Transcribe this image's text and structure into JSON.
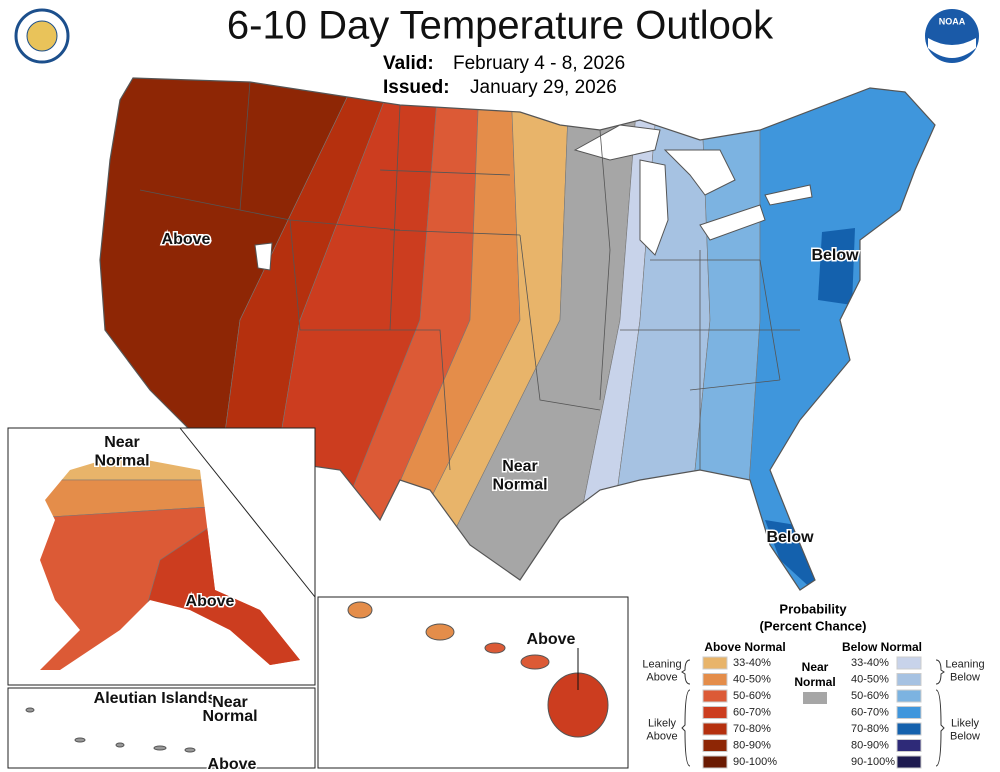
{
  "header": {
    "title": "6-10 Day Temperature Outlook",
    "valid_label": "Valid:",
    "valid_date": "February 4 - 8, 2026",
    "issued_label": "Issued:",
    "issued_date": "January 29, 2026"
  },
  "logos": {
    "noaa": "NOAA"
  },
  "map_labels": [
    {
      "lines": [
        "Above"
      ]
    },
    {
      "lines": [
        "Below"
      ]
    },
    {
      "lines": [
        "Below"
      ]
    },
    {
      "lines": [
        "Near",
        "Normal"
      ]
    },
    {
      "lines": [
        "Near",
        "Normal"
      ]
    },
    {
      "lines": [
        "Above"
      ]
    },
    {
      "lines": [
        "Above"
      ]
    },
    {
      "lines": [
        "Aleutian Islands"
      ]
    },
    {
      "lines": [
        "Near",
        "Normal"
      ]
    },
    {
      "lines": [
        "Above"
      ]
    }
  ],
  "legend": {
    "title": [
      "Probability",
      "(Percent Chance)"
    ],
    "above_normal": {
      "heading": "Above Normal",
      "bins": [
        {
          "label": "33-40%",
          "color": "#e8b46a"
        },
        {
          "label": "40-50%",
          "color": "#e48d4a"
        },
        {
          "label": "50-60%",
          "color": "#dc5a36"
        },
        {
          "label": "60-70%",
          "color": "#cc3d1f"
        },
        {
          "label": "70-80%",
          "color": "#b5300e"
        },
        {
          "label": "80-90%",
          "color": "#8e2605"
        },
        {
          "label": "90-100%",
          "color": "#6a1a02"
        }
      ],
      "groups": [
        [
          "Leaning",
          "Above"
        ],
        [
          "Likely",
          "Above"
        ]
      ]
    },
    "near_normal": {
      "heading": [
        "Near",
        "Normal"
      ],
      "color": "#a6a6a6"
    },
    "below_normal": {
      "heading": "Below Normal",
      "bins": [
        {
          "label": "33-40%",
          "color": "#c8d3ea"
        },
        {
          "label": "40-50%",
          "color": "#a6c2e2"
        },
        {
          "label": "50-60%",
          "color": "#7cb3e1"
        },
        {
          "label": "60-70%",
          "color": "#3f96dc"
        },
        {
          "label": "70-80%",
          "color": "#1461ad"
        },
        {
          "label": "80-90%",
          "color": "#2e2a78"
        },
        {
          "label": "90-100%",
          "color": "#1d1a4f"
        }
      ],
      "groups": [
        [
          "Leaning",
          "Below"
        ],
        [
          "Likely",
          "Below"
        ]
      ]
    }
  }
}
